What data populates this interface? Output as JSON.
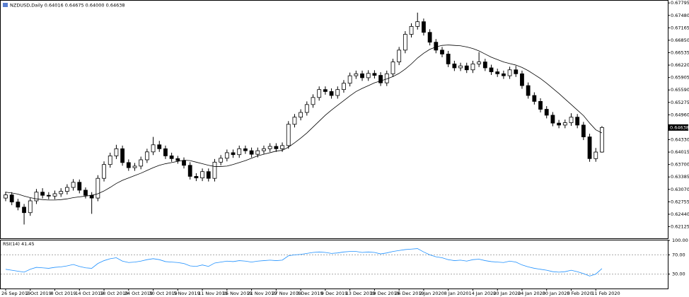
{
  "chart_data": {
    "type": "candlestick",
    "title": "NZDUSD,Daily  0.64016 0.64675 0.64000 0.64638",
    "indicator_label": "RSI(14) 41.45",
    "categories": [
      "26 Sep 2019",
      null,
      null,
      null,
      "2 Oct 2019",
      null,
      null,
      null,
      "8 Oct 2019",
      null,
      null,
      null,
      "14 Oct 2019",
      null,
      null,
      null,
      "18 Oct 2019",
      null,
      null,
      null,
      "24 Oct 2019",
      null,
      null,
      null,
      "30 Oct 2019",
      null,
      null,
      null,
      "5 Nov 2019",
      null,
      null,
      null,
      "11 Nov 2019",
      null,
      null,
      null,
      "15 Nov 2019",
      null,
      null,
      null,
      "21 Nov 2019",
      null,
      null,
      null,
      "27 Nov 2019",
      null,
      null,
      null,
      "3 Dec 2019",
      null,
      null,
      null,
      "9 Dec 2019",
      null,
      null,
      null,
      "13 Dec 2019",
      null,
      null,
      null,
      "19 Dec 2019",
      null,
      null,
      null,
      "26 Dec 2019",
      null,
      null,
      null,
      "2 Jan 2020",
      null,
      null,
      null,
      "8 Jan 2020",
      null,
      null,
      null,
      "14 Jan 2020",
      null,
      null,
      null,
      "20 Jan 2020",
      null,
      null,
      null,
      "24 Jan 2020",
      null,
      null,
      null,
      "30 Jan 2020",
      null,
      null,
      null,
      "5 Feb 2020",
      null,
      null,
      null,
      "11 Feb 2020",
      null
    ],
    "open": [
      0.6285,
      0.6293,
      0.6275,
      0.6262,
      0.6248,
      0.6278,
      0.63,
      0.6292,
      0.629,
      0.6296,
      0.6302,
      0.6312,
      0.6325,
      0.6305,
      0.6292,
      0.6285,
      0.6335,
      0.637,
      0.6392,
      0.641,
      0.6375,
      0.6362,
      0.6366,
      0.6382,
      0.6402,
      0.642,
      0.641,
      0.6392,
      0.6385,
      0.638,
      0.6368,
      0.634,
      0.6336,
      0.6352,
      0.6335,
      0.6376,
      0.6386,
      0.64,
      0.6395,
      0.641,
      0.6405,
      0.6396,
      0.6405,
      0.641,
      0.6416,
      0.641,
      0.6418,
      0.6472,
      0.649,
      0.6502,
      0.6522,
      0.654,
      0.656,
      0.6555,
      0.6545,
      0.656,
      0.6576,
      0.6595,
      0.66,
      0.659,
      0.6601,
      0.6596,
      0.6577,
      0.66,
      0.663,
      0.666,
      0.67,
      0.672,
      0.6732,
      0.6705,
      0.668,
      0.666,
      0.665,
      0.6625,
      0.6615,
      0.662,
      0.661,
      0.6625,
      0.663,
      0.6615,
      0.6605,
      0.66,
      0.6595,
      0.661,
      0.66,
      0.657,
      0.6545,
      0.653,
      0.651,
      0.6495,
      0.6475,
      0.647,
      0.6476,
      0.649,
      0.647,
      0.644,
      0.6385,
      0.64016
    ],
    "high": [
      0.6301,
      0.63,
      0.6283,
      0.627,
      0.6285,
      0.6308,
      0.631,
      0.63,
      0.6304,
      0.631,
      0.632,
      0.6333,
      0.6332,
      0.6312,
      0.63,
      0.6343,
      0.6378,
      0.64,
      0.642,
      0.6418,
      0.6383,
      0.6374,
      0.639,
      0.641,
      0.644,
      0.643,
      0.6418,
      0.64,
      0.6392,
      0.6388,
      0.6376,
      0.6348,
      0.636,
      0.636,
      0.6384,
      0.6394,
      0.6408,
      0.6408,
      0.6418,
      0.6418,
      0.6413,
      0.6413,
      0.6418,
      0.6424,
      0.6424,
      0.6426,
      0.648,
      0.6498,
      0.651,
      0.653,
      0.6548,
      0.6568,
      0.6568,
      0.6563,
      0.6568,
      0.6584,
      0.6603,
      0.6608,
      0.6608,
      0.6609,
      0.6609,
      0.6604,
      0.6608,
      0.6638,
      0.6668,
      0.6708,
      0.6728,
      0.6755,
      0.674,
      0.6713,
      0.6688,
      0.6668,
      0.6658,
      0.6633,
      0.6628,
      0.6628,
      0.6633,
      0.6655,
      0.6638,
      0.6623,
      0.6613,
      0.6608,
      0.6618,
      0.662,
      0.6608,
      0.6578,
      0.6553,
      0.6538,
      0.6518,
      0.6503,
      0.6483,
      0.6484,
      0.65,
      0.6498,
      0.6478,
      0.6448,
      0.6412,
      0.64675
    ],
    "low": [
      0.6277,
      0.6267,
      0.6254,
      0.6218,
      0.624,
      0.627,
      0.6284,
      0.6282,
      0.6282,
      0.6288,
      0.6294,
      0.6304,
      0.6297,
      0.6284,
      0.6245,
      0.6277,
      0.6327,
      0.6362,
      0.6384,
      0.6367,
      0.6354,
      0.6354,
      0.6358,
      0.6374,
      0.6394,
      0.6402,
      0.6384,
      0.6377,
      0.6372,
      0.636,
      0.6332,
      0.6328,
      0.6328,
      0.6327,
      0.6327,
      0.6368,
      0.6378,
      0.6387,
      0.6387,
      0.6397,
      0.6388,
      0.6388,
      0.6397,
      0.6402,
      0.6402,
      0.6402,
      0.641,
      0.6464,
      0.6482,
      0.6494,
      0.6514,
      0.6532,
      0.6547,
      0.6537,
      0.6537,
      0.6552,
      0.6568,
      0.6587,
      0.6582,
      0.6582,
      0.6588,
      0.6569,
      0.6569,
      0.6592,
      0.6622,
      0.6652,
      0.6692,
      0.6712,
      0.6697,
      0.6672,
      0.6652,
      0.6642,
      0.6617,
      0.6607,
      0.6607,
      0.6602,
      0.6602,
      0.6617,
      0.6607,
      0.6597,
      0.6592,
      0.6587,
      0.6587,
      0.6592,
      0.6562,
      0.6537,
      0.6522,
      0.6502,
      0.6487,
      0.6467,
      0.6462,
      0.6462,
      0.6468,
      0.6462,
      0.6432,
      0.6377,
      0.6377,
      0.64
    ],
    "close": [
      0.6293,
      0.6275,
      0.6262,
      0.6248,
      0.6278,
      0.63,
      0.6292,
      0.629,
      0.6296,
      0.6302,
      0.6312,
      0.6325,
      0.6305,
      0.6292,
      0.6285,
      0.6335,
      0.637,
      0.6392,
      0.641,
      0.6375,
      0.6362,
      0.6366,
      0.6382,
      0.6402,
      0.642,
      0.641,
      0.6392,
      0.6385,
      0.638,
      0.6368,
      0.634,
      0.6336,
      0.6352,
      0.6335,
      0.6376,
      0.6386,
      0.64,
      0.6395,
      0.641,
      0.6405,
      0.6396,
      0.6405,
      0.641,
      0.6416,
      0.641,
      0.6418,
      0.6472,
      0.649,
      0.6502,
      0.6522,
      0.654,
      0.656,
      0.6555,
      0.6545,
      0.656,
      0.6576,
      0.6595,
      0.66,
      0.659,
      0.6601,
      0.6596,
      0.6577,
      0.66,
      0.663,
      0.666,
      0.67,
      0.672,
      0.6732,
      0.6705,
      0.668,
      0.666,
      0.665,
      0.6625,
      0.6615,
      0.662,
      0.661,
      0.6625,
      0.663,
      0.6615,
      0.6605,
      0.66,
      0.6595,
      0.661,
      0.66,
      0.657,
      0.6545,
      0.653,
      0.651,
      0.6495,
      0.6475,
      0.647,
      0.6476,
      0.649,
      0.647,
      0.644,
      0.6385,
      0.64016,
      0.64638
    ],
    "ma": [
      0.63,
      0.6298,
      0.6295,
      0.629,
      0.6286,
      0.6283,
      0.6281,
      0.628,
      0.628,
      0.6281,
      0.6283,
      0.6286,
      0.6288,
      0.629,
      0.6292,
      0.6296,
      0.6303,
      0.6312,
      0.6322,
      0.633,
      0.6336,
      0.6342,
      0.6348,
      0.6355,
      0.6362,
      0.6368,
      0.6372,
      0.6375,
      0.6378,
      0.6381,
      0.638,
      0.6376,
      0.6372,
      0.6368,
      0.6365,
      0.6365,
      0.6366,
      0.637,
      0.6375,
      0.638,
      0.6386,
      0.6392,
      0.6396,
      0.64,
      0.6404,
      0.6406,
      0.6414,
      0.6425,
      0.6437,
      0.645,
      0.6465,
      0.648,
      0.6495,
      0.6508,
      0.652,
      0.6532,
      0.6544,
      0.6555,
      0.6563,
      0.657,
      0.6577,
      0.6582,
      0.6587,
      0.6593,
      0.6601,
      0.6612,
      0.6625,
      0.664,
      0.6652,
      0.6662,
      0.6668,
      0.6672,
      0.6673,
      0.6672,
      0.6671,
      0.6668,
      0.6664,
      0.6658,
      0.665,
      0.6642,
      0.6636,
      0.663,
      0.6626,
      0.6622,
      0.6616,
      0.6608,
      0.6598,
      0.6588,
      0.6576,
      0.6563,
      0.655,
      0.6536,
      0.6522,
      0.6508,
      0.6494,
      0.6475,
      0.6458,
      0.645
    ],
    "rsi": [
      40,
      38,
      36,
      34,
      40,
      44,
      43,
      42,
      44,
      45,
      47,
      50,
      46,
      43,
      42,
      52,
      58,
      62,
      64,
      57,
      54,
      55,
      57,
      60,
      62,
      60,
      56,
      55,
      54,
      52,
      47,
      46,
      49,
      46,
      53,
      55,
      57,
      56,
      58,
      57,
      55,
      57,
      58,
      59,
      58,
      59,
      68,
      70,
      71,
      73,
      75,
      76,
      75,
      73,
      74,
      76,
      77,
      77,
      75,
      76,
      75,
      72,
      74,
      77,
      79,
      81,
      82,
      83,
      76,
      70,
      66,
      64,
      60,
      58,
      59,
      57,
      60,
      61,
      58,
      56,
      55,
      54,
      57,
      55,
      49,
      45,
      42,
      40,
      38,
      35,
      34,
      35,
      38,
      35,
      31,
      26,
      30,
      41.45
    ],
    "ylim": [
      0.6183,
      0.6787
    ],
    "yticks": [
      {
        "value": 0.67795,
        "label": "0.67795"
      },
      {
        "value": 0.6748,
        "label": "0.67480"
      },
      {
        "value": 0.67165,
        "label": "0.67165"
      },
      {
        "value": 0.6685,
        "label": "0.66850"
      },
      {
        "value": 0.66535,
        "label": "0.66535"
      },
      {
        "value": 0.6622,
        "label": "0.66220"
      },
      {
        "value": 0.65905,
        "label": "0.65905"
      },
      {
        "value": 0.6559,
        "label": "0.65590"
      },
      {
        "value": 0.65275,
        "label": "0.65275"
      },
      {
        "value": 0.6496,
        "label": "0.64960"
      },
      {
        "value": 0.6433,
        "label": "0.64330"
      },
      {
        "value": 0.64015,
        "label": "0.64015"
      },
      {
        "value": 0.637,
        "label": "0.63700"
      },
      {
        "value": 0.63385,
        "label": "0.63385"
      },
      {
        "value": 0.6307,
        "label": "0.63070"
      },
      {
        "value": 0.62755,
        "label": "0.62755"
      },
      {
        "value": 0.6244,
        "label": "0.62440"
      },
      {
        "value": 0.62125,
        "label": "0.62125"
      }
    ],
    "y2lim": [
      0,
      100
    ],
    "y2ticks": [
      {
        "value": 100,
        "label": "100.00"
      },
      {
        "value": 70,
        "label": "70.00"
      },
      {
        "value": 30,
        "label": "30.00"
      }
    ],
    "up_color": "#ffffff",
    "down_color": "#000000",
    "ma_color": "#000000",
    "rsi_color": "#1e90ff"
  }
}
